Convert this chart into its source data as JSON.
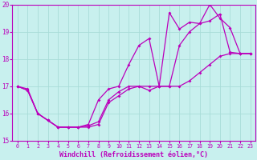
{
  "title": "",
  "xlabel": "Windchill (Refroidissement éolien,°C)",
  "ylabel": "",
  "bg_color": "#c8f0ee",
  "grid_color": "#a8dcd8",
  "line_color": "#bb00bb",
  "xlim": [
    -0.5,
    23.5
  ],
  "ylim": [
    15,
    20
  ],
  "xticks": [
    0,
    1,
    2,
    3,
    4,
    5,
    6,
    7,
    8,
    9,
    10,
    11,
    12,
    13,
    14,
    15,
    16,
    17,
    18,
    19,
    20,
    21,
    22,
    23
  ],
  "yticks": [
    15,
    16,
    17,
    18,
    19,
    20
  ],
  "line1_x": [
    0,
    1,
    2,
    3,
    4,
    5,
    6,
    7,
    8,
    9,
    10,
    11,
    12,
    13,
    14,
    15,
    16,
    17,
    18,
    19,
    20,
    21,
    22,
    23
  ],
  "line1_y": [
    17.0,
    16.9,
    16.0,
    15.75,
    15.5,
    15.5,
    15.5,
    15.5,
    15.6,
    16.4,
    16.65,
    16.9,
    17.0,
    16.85,
    17.0,
    19.7,
    19.1,
    19.35,
    19.3,
    20.0,
    19.5,
    19.15,
    18.2,
    18.2
  ],
  "line2_x": [
    0,
    1,
    2,
    3,
    4,
    5,
    6,
    7,
    8,
    9,
    10,
    11,
    12,
    13,
    14,
    15,
    16,
    17,
    18,
    19,
    20,
    21,
    22,
    23
  ],
  "line2_y": [
    17.0,
    16.85,
    16.0,
    15.75,
    15.5,
    15.5,
    15.5,
    15.55,
    15.7,
    16.5,
    16.8,
    17.0,
    17.0,
    17.0,
    17.0,
    17.0,
    17.0,
    17.2,
    17.5,
    17.8,
    18.1,
    18.2,
    18.2,
    18.2
  ],
  "line3_x": [
    0,
    1,
    2,
    3,
    4,
    5,
    6,
    7,
    8,
    9,
    10,
    11,
    12,
    13,
    14,
    15,
    16,
    17,
    18,
    19,
    20,
    21,
    22,
    23
  ],
  "line3_y": [
    17.0,
    16.85,
    16.0,
    15.75,
    15.5,
    15.5,
    15.5,
    15.6,
    16.5,
    16.9,
    17.0,
    17.8,
    18.5,
    18.75,
    17.0,
    17.0,
    18.5,
    19.0,
    19.3,
    19.4,
    19.65,
    18.25,
    18.2,
    18.2
  ],
  "marker_size": 2.0,
  "line_width": 0.9,
  "xlabel_fontsize": 6.0,
  "tick_fontsize": 5.5
}
